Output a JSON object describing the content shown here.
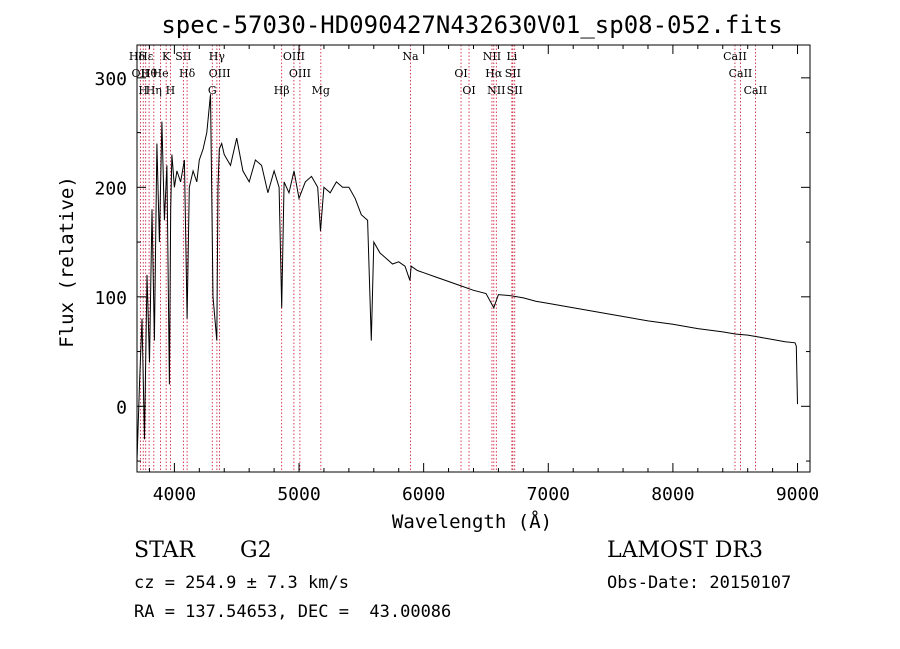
{
  "chart_data": {
    "type": "line",
    "title": "spec-57030-HD090427N432630V01_sp08-052.fits",
    "xlabel": "Wavelength (Å)",
    "ylabel": "Flux (relative)",
    "xlim": [
      3700,
      9100
    ],
    "ylim": [
      -60,
      330
    ],
    "xticks": [
      4000,
      5000,
      6000,
      7000,
      8000,
      9000
    ],
    "xtick_labels": [
      "4000",
      "5000",
      "6000",
      "7000",
      "8000",
      "9000"
    ],
    "yticks": [
      0,
      100,
      200,
      300
    ],
    "ytick_labels": [
      "0",
      "100",
      "200",
      "300"
    ],
    "grid": false,
    "series": [
      {
        "name": "spectrum",
        "x": [
          3700,
          3720,
          3740,
          3760,
          3780,
          3800,
          3820,
          3840,
          3860,
          3880,
          3900,
          3920,
          3940,
          3960,
          3970,
          3980,
          4000,
          4020,
          4050,
          4080,
          4102,
          4120,
          4150,
          4180,
          4200,
          4230,
          4260,
          4290,
          4300,
          4310,
          4340,
          4350,
          4360,
          4380,
          4400,
          4450,
          4500,
          4550,
          4600,
          4650,
          4700,
          4750,
          4800,
          4840,
          4861,
          4880,
          4920,
          4960,
          5000,
          5050,
          5100,
          5150,
          5172,
          5200,
          5250,
          5300,
          5350,
          5400,
          5450,
          5500,
          5550,
          5580,
          5600,
          5650,
          5700,
          5750,
          5800,
          5850,
          5890,
          5900,
          5950,
          6000,
          6100,
          6200,
          6300,
          6400,
          6500,
          6563,
          6600,
          6700,
          6800,
          6900,
          7000,
          7200,
          7400,
          7600,
          7800,
          8000,
          8200,
          8400,
          8500,
          8600,
          8700,
          8800,
          8900,
          8980,
          8990,
          9000
        ],
        "y": [
          -50,
          20,
          80,
          -30,
          120,
          40,
          180,
          60,
          240,
          150,
          260,
          170,
          220,
          20,
          180,
          230,
          200,
          215,
          205,
          225,
          80,
          200,
          215,
          205,
          225,
          235,
          250,
          285,
          190,
          100,
          60,
          200,
          235,
          240,
          230,
          220,
          245,
          215,
          205,
          225,
          220,
          195,
          215,
          200,
          90,
          205,
          195,
          215,
          190,
          205,
          210,
          200,
          160,
          200,
          195,
          205,
          200,
          200,
          190,
          175,
          170,
          60,
          150,
          140,
          135,
          130,
          132,
          128,
          115,
          128,
          124,
          122,
          118,
          114,
          110,
          106,
          103,
          90,
          102,
          101,
          99,
          96,
          94,
          90,
          86,
          82,
          78,
          75,
          71,
          68,
          66,
          65,
          63,
          61,
          59,
          58,
          55,
          2
        ]
      }
    ],
    "line_markers": [
      {
        "label": "Hδ",
        "wave": 3700
      },
      {
        "label": "OII",
        "wave": 3727
      },
      {
        "label": "H",
        "wave": 3750
      },
      {
        "label": "Hε",
        "wave": 3770
      },
      {
        "label": "Hθ",
        "wave": 3797
      },
      {
        "label": "Hη",
        "wave": 3835
      },
      {
        "label": "K",
        "wave": 3934
      },
      {
        "label": "He",
        "wave": 3889
      },
      {
        "label": "H",
        "wave": 3968
      },
      {
        "label": "SII",
        "wave": 4072
      },
      {
        "label": "Hδ",
        "wave": 4102
      },
      {
        "label": "G",
        "wave": 4304
      },
      {
        "label": "Hγ",
        "wave": 4341
      },
      {
        "label": "OIII",
        "wave": 4363
      },
      {
        "label": "Hβ",
        "wave": 4861
      },
      {
        "label": "OIII",
        "wave": 4959
      },
      {
        "label": "OIII",
        "wave": 5007
      },
      {
        "label": "Mg",
        "wave": 5175
      },
      {
        "label": "Na",
        "wave": 5894
      },
      {
        "label": "OI",
        "wave": 6300
      },
      {
        "label": "OI",
        "wave": 6364
      },
      {
        "label": "NII",
        "wave": 6548
      },
      {
        "label": "Hα",
        "wave": 6563
      },
      {
        "label": "NII",
        "wave": 6583
      },
      {
        "label": "Li",
        "wave": 6708
      },
      {
        "label": "SII",
        "wave": 6716
      },
      {
        "label": "SII",
        "wave": 6731
      },
      {
        "label": "CaII",
        "wave": 8498
      },
      {
        "label": "CaII",
        "wave": 8542
      },
      {
        "label": "CaII",
        "wave": 8662
      }
    ]
  },
  "info": {
    "class_label": "STAR",
    "subclass": "G2",
    "survey": "LAMOST DR3",
    "redshift": "cz = 254.9 ± 7.3 km/s",
    "obs_date": "Obs-Date: 20150107",
    "coords": "RA = 137.54653, DEC =  43.00086"
  }
}
